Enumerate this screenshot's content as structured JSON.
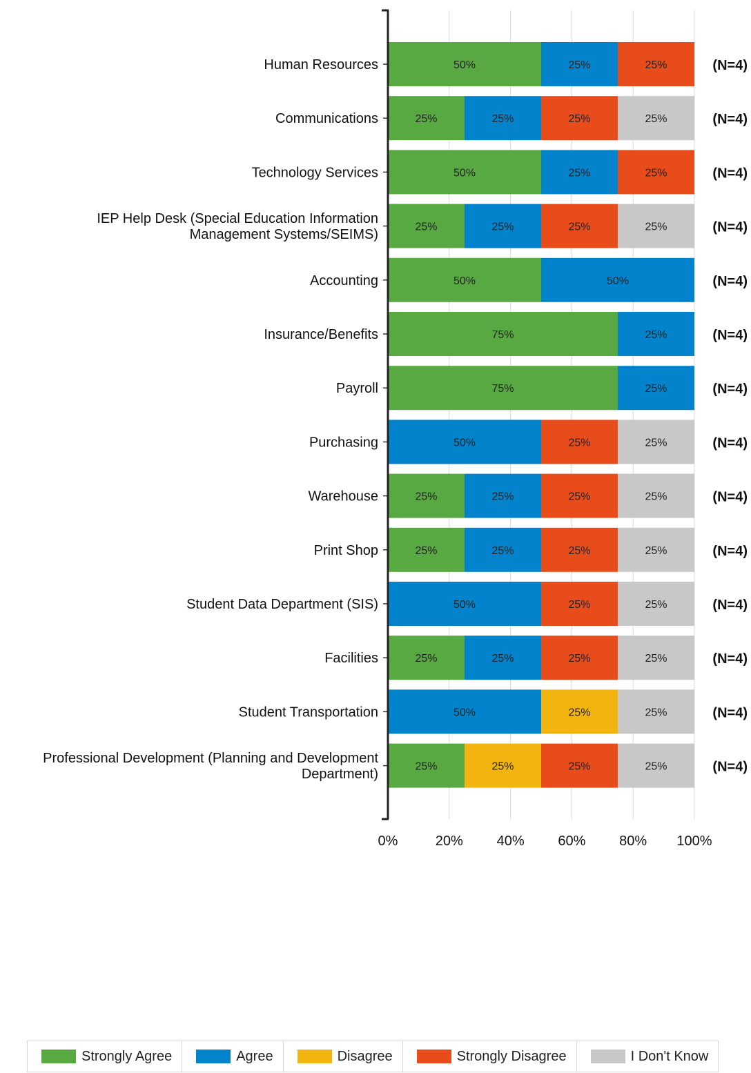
{
  "chart_data": {
    "type": "bar",
    "orientation": "horizontal",
    "stacked": true,
    "categories": [
      "Human Resources",
      "Communications",
      "Technology Services",
      "IEP Help Desk (Special Education Information Management Systems/SEIMS)",
      "Accounting",
      "Insurance/Benefits",
      "Payroll",
      "Purchasing",
      "Warehouse",
      "Print Shop",
      "Student Data Department (SIS)",
      "Facilities",
      "Student Transportation",
      "Professional Development (Planning and Development Department)"
    ],
    "category_lines": [
      [
        "Human Resources"
      ],
      [
        "Communications"
      ],
      [
        "Technology Services"
      ],
      [
        "IEP Help Desk (Special Education Information",
        "Management Systems/SEIMS)"
      ],
      [
        "Accounting"
      ],
      [
        "Insurance/Benefits"
      ],
      [
        "Payroll"
      ],
      [
        "Purchasing"
      ],
      [
        "Warehouse"
      ],
      [
        "Print Shop"
      ],
      [
        "Student Data Department (SIS)"
      ],
      [
        "Facilities"
      ],
      [
        "Student Transportation"
      ],
      [
        "Professional Development (Planning and Development",
        "Department)"
      ]
    ],
    "series": [
      {
        "name": "Strongly Agree",
        "color": "#58a942",
        "values": [
          50,
          25,
          50,
          25,
          50,
          75,
          75,
          0,
          25,
          25,
          0,
          25,
          0,
          25
        ]
      },
      {
        "name": "Agree",
        "color": "#0283cc",
        "values": [
          25,
          25,
          25,
          25,
          50,
          25,
          25,
          50,
          25,
          25,
          50,
          25,
          50,
          0
        ]
      },
      {
        "name": "Disagree",
        "color": "#f2b50f",
        "values": [
          0,
          0,
          0,
          0,
          0,
          0,
          0,
          0,
          0,
          0,
          0,
          0,
          25,
          25
        ]
      },
      {
        "name": "Strongly Disagree",
        "color": "#e94c1b",
        "values": [
          25,
          25,
          25,
          25,
          0,
          0,
          0,
          25,
          25,
          25,
          25,
          25,
          0,
          25
        ]
      },
      {
        "name": "I Don't Know",
        "color": "#c8c8c8",
        "values": [
          0,
          25,
          0,
          25,
          0,
          0,
          0,
          25,
          25,
          25,
          25,
          25,
          25,
          25
        ]
      }
    ],
    "n_labels": [
      "(N=4)",
      "(N=4)",
      "(N=4)",
      "(N=4)",
      "(N=4)",
      "(N=4)",
      "(N=4)",
      "(N=4)",
      "(N=4)",
      "(N=4)",
      "(N=4)",
      "(N=4)",
      "(N=4)",
      "(N=4)"
    ],
    "x_ticks": [
      "0%",
      "20%",
      "40%",
      "60%",
      "80%",
      "100%"
    ],
    "xlim": [
      0,
      100
    ],
    "grid": true,
    "legend_position": "bottom"
  },
  "legend": {
    "items": [
      {
        "label": "Strongly Agree",
        "color": "#58a942"
      },
      {
        "label": "Agree",
        "color": "#0283cc"
      },
      {
        "label": "Disagree",
        "color": "#f2b50f"
      },
      {
        "label": "Strongly Disagree",
        "color": "#e94c1b"
      },
      {
        "label": "I Don't Know",
        "color": "#c8c8c8"
      }
    ]
  }
}
